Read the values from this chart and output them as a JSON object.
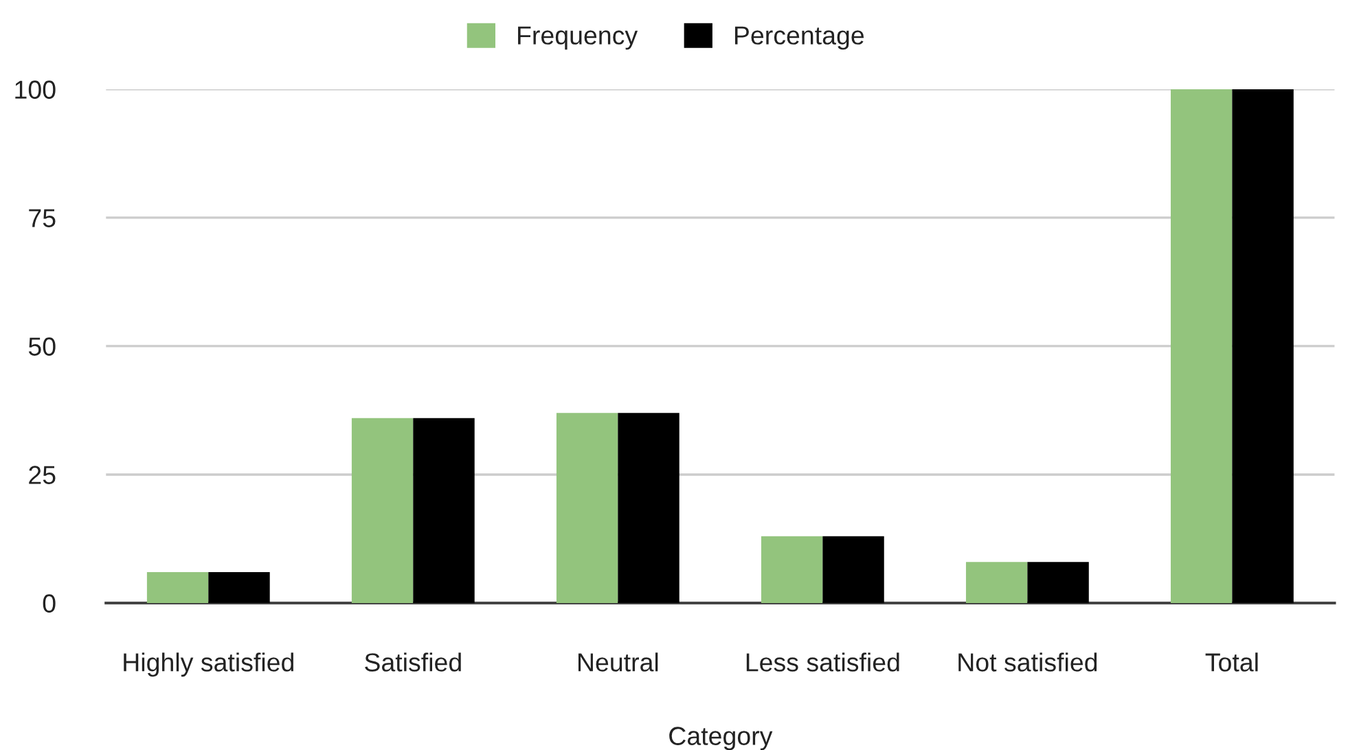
{
  "chart_data": {
    "type": "bar",
    "xlabel": "Category",
    "categories": [
      "Highly satisfied",
      "Satisfied",
      "Neutral",
      "Less satisfied",
      "Not satisfied",
      "Total"
    ],
    "series": [
      {
        "name": "Frequency",
        "color": "#93c47d",
        "values": [
          6,
          36,
          37,
          13,
          8,
          100
        ]
      },
      {
        "name": "Percentage",
        "color": "#000000",
        "values": [
          6,
          36,
          37,
          13,
          8,
          100
        ]
      }
    ],
    "ylim": [
      0,
      100
    ],
    "yticks": [
      0,
      25,
      50,
      75,
      100
    ],
    "grid": "y",
    "legend": "top"
  }
}
